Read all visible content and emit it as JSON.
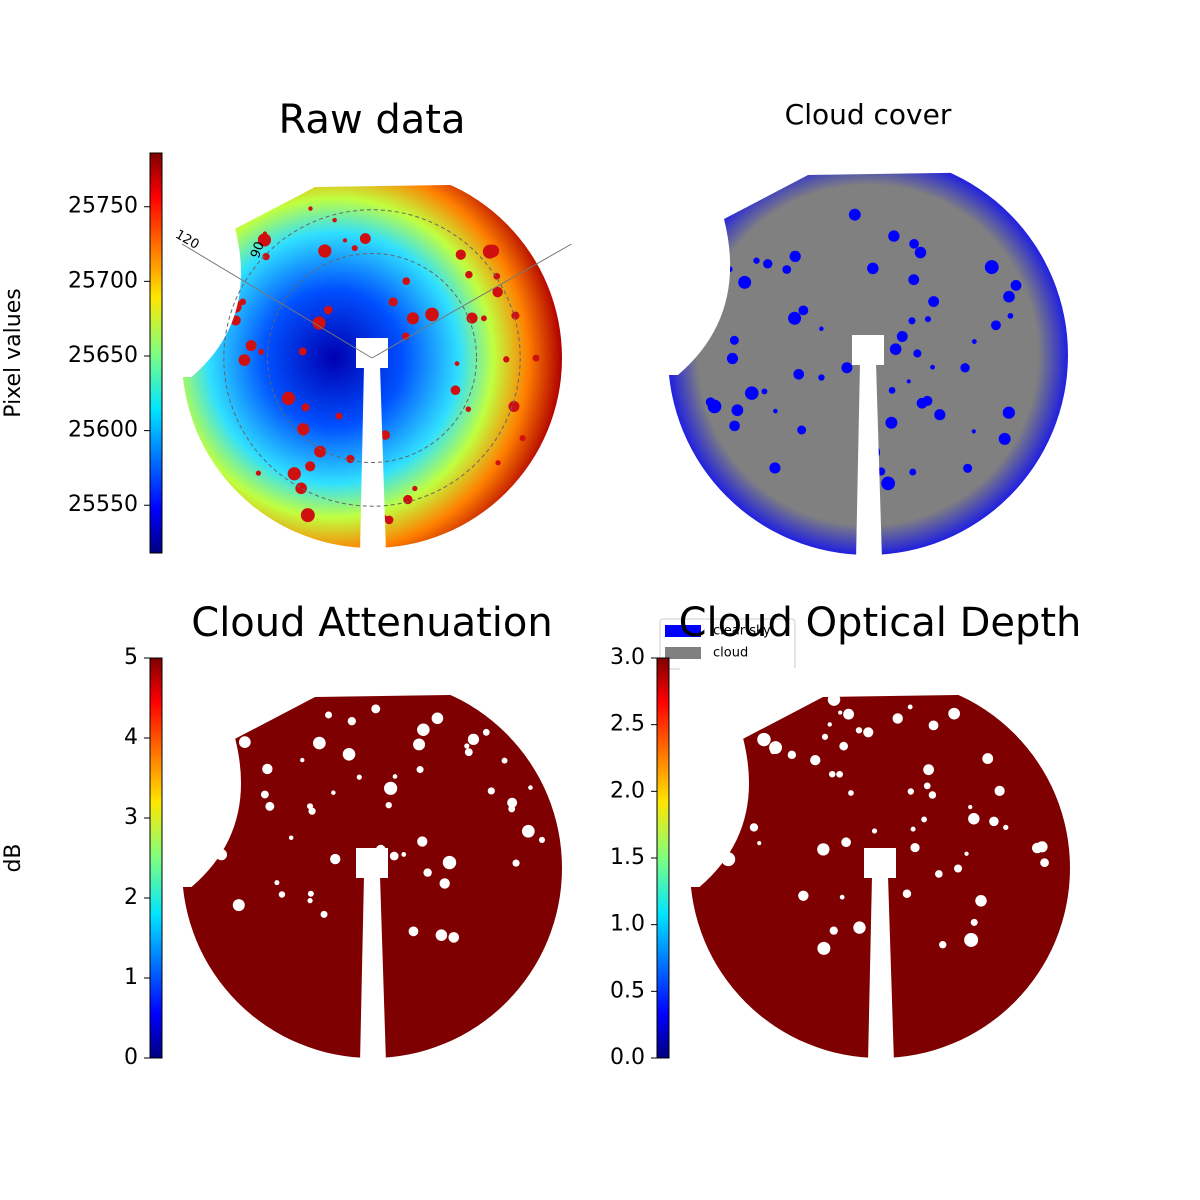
{
  "chart_data": [
    {
      "type": "image",
      "title": "Raw data",
      "colormap": "jet",
      "colorbar": {
        "label": "Pixel values",
        "lim": [
          25518,
          25786
        ],
        "ticks": [
          25550,
          25600,
          25650,
          25700,
          25750
        ]
      },
      "polar_labels": [
        "120",
        "90"
      ]
    },
    {
      "type": "image",
      "title": "Cloud cover",
      "legend": [
        {
          "name": "clear sky",
          "color": "#0000ff"
        },
        {
          "name": "cloud",
          "color": "#808080"
        }
      ]
    },
    {
      "type": "image",
      "title": "Cloud Attenuation",
      "colormap": "jet",
      "colorbar": {
        "label": "dB",
        "lim": [
          0,
          5
        ],
        "ticks": [
          0,
          1,
          2,
          3,
          4,
          5
        ]
      }
    },
    {
      "type": "image",
      "title": "Cloud Optical Depth",
      "colormap": "jet",
      "colorbar": {
        "lim": [
          0,
          3
        ],
        "ticks": [
          {
            "value": 0,
            "label": "0.0"
          },
          0.5,
          {
            "value": 1,
            "label": "1.0"
          },
          1.5,
          {
            "value": 2,
            "label": "2.0"
          },
          2.5,
          {
            "value": 3,
            "label": "3.0"
          }
        ]
      }
    }
  ]
}
